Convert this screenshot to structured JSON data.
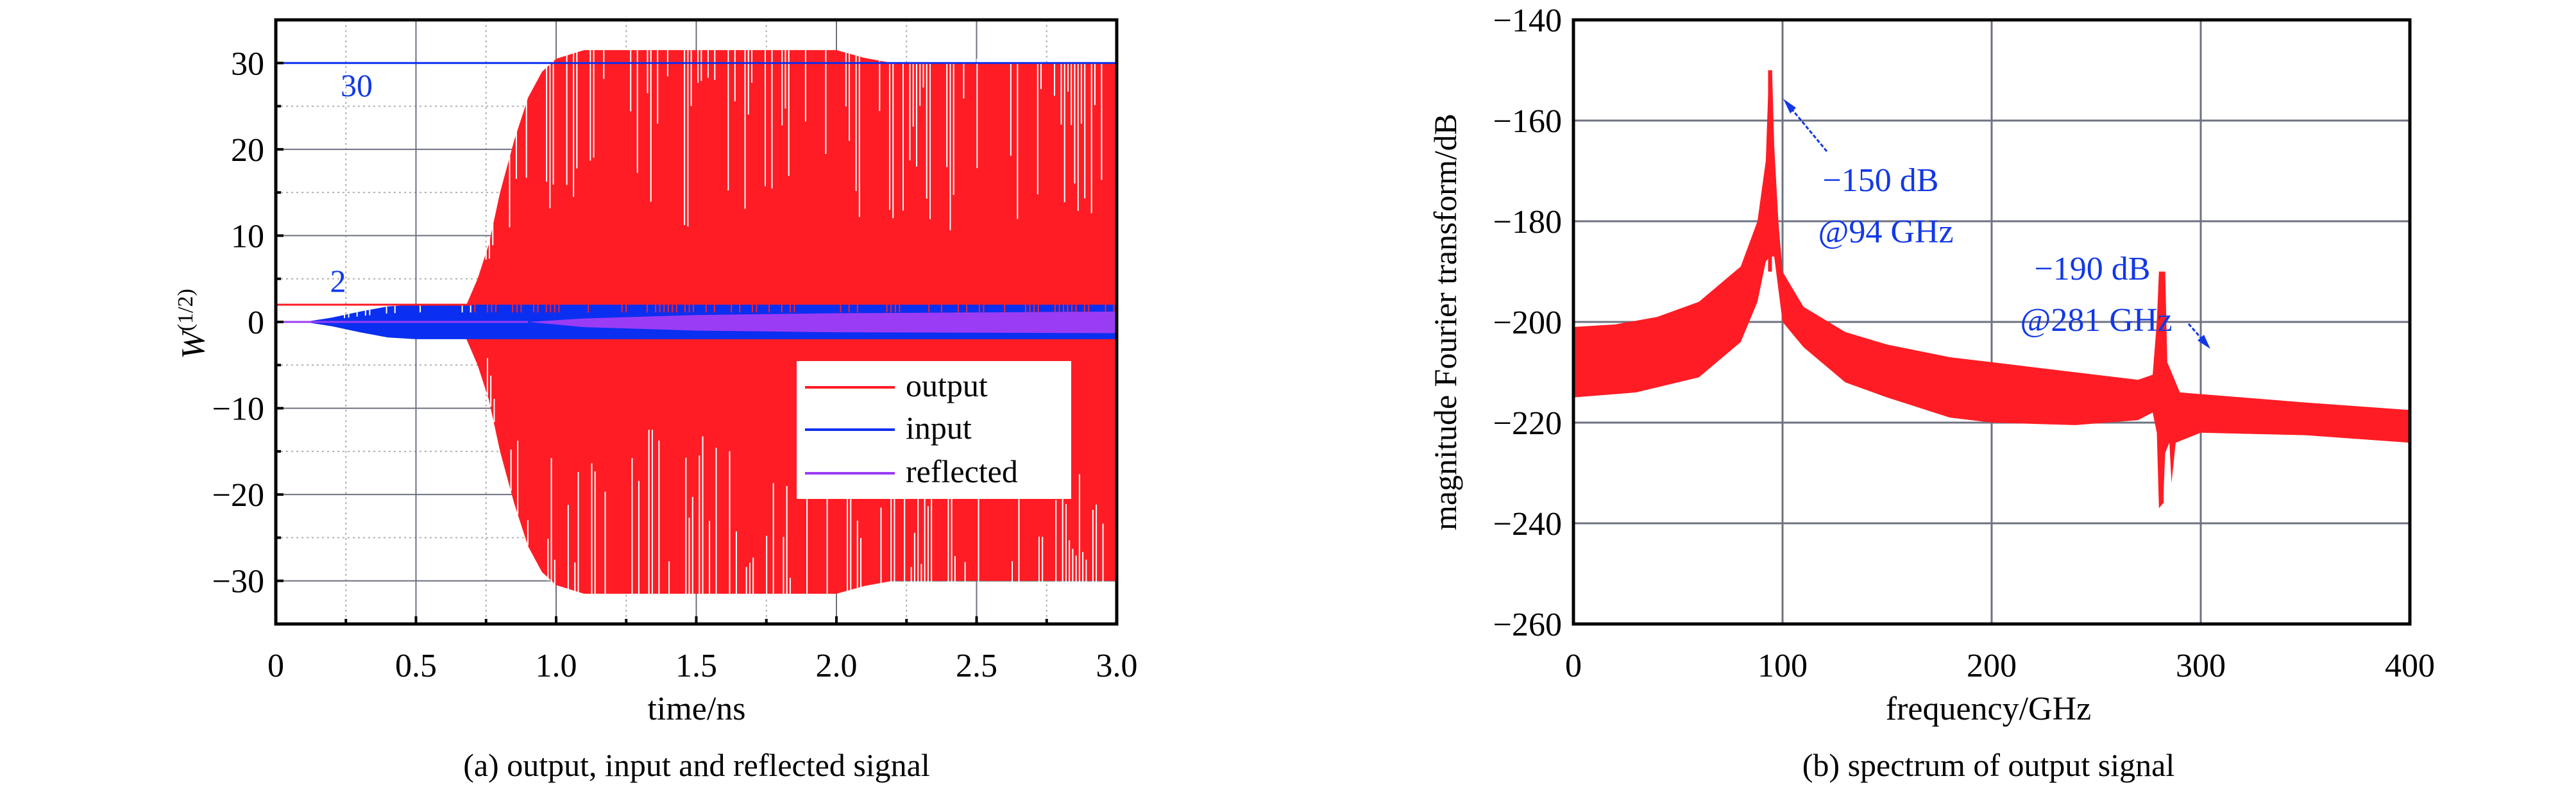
{
  "colors": {
    "output": "#ff1c24",
    "input": "#0a2ff0",
    "reflected": "#9b3cf5",
    "annotation": "#1238e6",
    "grid": "#6e7280",
    "frame": "#000000"
  },
  "chart_data": [
    {
      "type": "line",
      "caption": "(a) output, input and reflected signal",
      "xlabel": "time/ns",
      "ylabel": "W",
      "ylabel_sup": "(1/2)",
      "xlim": [
        0,
        3.0
      ],
      "ylim": [
        -35,
        35
      ],
      "xticks": [
        "0",
        "0.5",
        "1.0",
        "1.5",
        "2.0",
        "2.5",
        "3.0"
      ],
      "xtick_values": [
        0,
        0.5,
        1.0,
        1.5,
        2.0,
        2.5,
        3.0
      ],
      "yticks": [
        "−30",
        "−20",
        "−10",
        "0",
        "10",
        "20",
        "30"
      ],
      "ytick_values": [
        -30,
        -20,
        -10,
        0,
        10,
        20,
        30
      ],
      "grid": true,
      "legend_position": "lower-right",
      "series": [
        {
          "name": "output",
          "color": "#ff1c24",
          "upper": [
            [
              0.68,
              2
            ],
            [
              0.72,
              5
            ],
            [
              0.76,
              9
            ],
            [
              0.8,
              15
            ],
            [
              0.85,
              21
            ],
            [
              0.9,
              26
            ],
            [
              0.95,
              29
            ],
            [
              1.0,
              30.5
            ],
            [
              1.1,
              31.5
            ],
            [
              2.0,
              31.5
            ],
            [
              2.1,
              30.6
            ],
            [
              2.2,
              30
            ],
            [
              3.0,
              30
            ]
          ],
          "lower": [
            [
              0.68,
              -2
            ],
            [
              0.72,
              -5
            ],
            [
              0.76,
              -9
            ],
            [
              0.8,
              -15
            ],
            [
              0.85,
              -21
            ],
            [
              0.9,
              -26
            ],
            [
              0.95,
              -29
            ],
            [
              1.0,
              -30.5
            ],
            [
              1.1,
              -31.5
            ],
            [
              2.0,
              -31.5
            ],
            [
              2.1,
              -30.6
            ],
            [
              2.2,
              -30
            ],
            [
              3.0,
              -30
            ]
          ]
        },
        {
          "name": "input",
          "color": "#0a2ff0",
          "upper": [
            [
              0.1,
              0
            ],
            [
              0.2,
              0.5
            ],
            [
              0.3,
              1.2
            ],
            [
              0.4,
              1.8
            ],
            [
              0.5,
              2
            ],
            [
              3.0,
              2
            ]
          ],
          "lower": [
            [
              0.1,
              0
            ],
            [
              0.2,
              -0.5
            ],
            [
              0.3,
              -1.2
            ],
            [
              0.4,
              -1.8
            ],
            [
              0.5,
              -2
            ],
            [
              3.0,
              -2
            ]
          ]
        },
        {
          "name": "reflected",
          "color": "#9b3cf5",
          "upper": [
            [
              0,
              0
            ],
            [
              0.9,
              0
            ],
            [
              1.1,
              0.4
            ],
            [
              1.5,
              0.8
            ],
            [
              2.0,
              1.0
            ],
            [
              3.0,
              1.2
            ]
          ],
          "lower": [
            [
              0,
              0
            ],
            [
              0.9,
              0
            ],
            [
              1.1,
              -0.6
            ],
            [
              1.5,
              -1.0
            ],
            [
              2.0,
              -1.2
            ],
            [
              3.0,
              -1.3
            ]
          ]
        }
      ],
      "reference_lines": [
        {
          "value": 30,
          "color": "#0a2ff0",
          "x_range": [
            0,
            3.0
          ],
          "label": "30"
        },
        {
          "value": 2,
          "color": "#ff1c24",
          "x_range": [
            0,
            0.7
          ],
          "label": "2"
        }
      ]
    },
    {
      "type": "area",
      "caption": "(b) spectrum of output signal",
      "xlabel": "frequency/GHz",
      "ylabel": "magnitude Fourier transform/dB",
      "xlim": [
        0,
        400
      ],
      "ylim": [
        -260,
        -140
      ],
      "xticks": [
        "0",
        "100",
        "200",
        "300",
        "400"
      ],
      "xtick_values": [
        0,
        100,
        200,
        300,
        400
      ],
      "yticks": [
        "−260",
        "−240",
        "−220",
        "−200",
        "−180",
        "−160",
        "−140"
      ],
      "ytick_values": [
        -260,
        -240,
        -220,
        -200,
        -180,
        -160,
        -140
      ],
      "grid": true,
      "series": [
        {
          "name": "output spectrum",
          "color": "#ff1c24",
          "upper": [
            [
              0,
              -201
            ],
            [
              20,
              -200.5
            ],
            [
              40,
              -199
            ],
            [
              60,
              -196
            ],
            [
              80,
              -189
            ],
            [
              88,
              -180
            ],
            [
              92,
              -168
            ],
            [
              93.5,
              -150
            ],
            [
              95,
              -150
            ],
            [
              96,
              -165
            ],
            [
              98,
              -180
            ],
            [
              100,
              -190
            ],
            [
              110,
              -197
            ],
            [
              130,
              -202
            ],
            [
              150,
              -204.5
            ],
            [
              180,
              -207
            ],
            [
              200,
              -208
            ],
            [
              240,
              -210
            ],
            [
              270,
              -211.5
            ],
            [
              277,
              -210.5
            ],
            [
              279,
              -200
            ],
            [
              280,
              -190
            ],
            [
              283,
              -190
            ],
            [
              284,
              -208
            ],
            [
              290,
              -214
            ],
            [
              320,
              -215
            ],
            [
              350,
              -216
            ],
            [
              400,
              -217.5
            ]
          ],
          "lower": [
            [
              0,
              -215
            ],
            [
              30,
              -214
            ],
            [
              60,
              -211
            ],
            [
              80,
              -204
            ],
            [
              88,
              -196
            ],
            [
              92,
              -188
            ],
            [
              94,
              -187
            ],
            [
              96,
              -187
            ],
            [
              100,
              -200
            ],
            [
              110,
              -205
            ],
            [
              130,
              -212
            ],
            [
              150,
              -215
            ],
            [
              180,
              -219
            ],
            [
              200,
              -220
            ],
            [
              240,
              -220.5
            ],
            [
              270,
              -219.5
            ],
            [
              277,
              -218
            ],
            [
              279,
              -222
            ],
            [
              280,
              -237
            ],
            [
              282,
              -236
            ],
            [
              283,
              -226
            ],
            [
              285,
              -224
            ],
            [
              286,
              -232
            ],
            [
              288,
              -224
            ],
            [
              300,
              -222
            ],
            [
              350,
              -222.5
            ],
            [
              400,
              -224
            ]
          ]
        }
      ],
      "annotations": [
        {
          "lines": [
            "−150 dB",
            "@94 GHz"
          ],
          "point": [
            94,
            -150
          ]
        },
        {
          "lines": [
            "−190 dB",
            "@281 GHz"
          ],
          "point": [
            281,
            -190
          ]
        }
      ]
    }
  ]
}
